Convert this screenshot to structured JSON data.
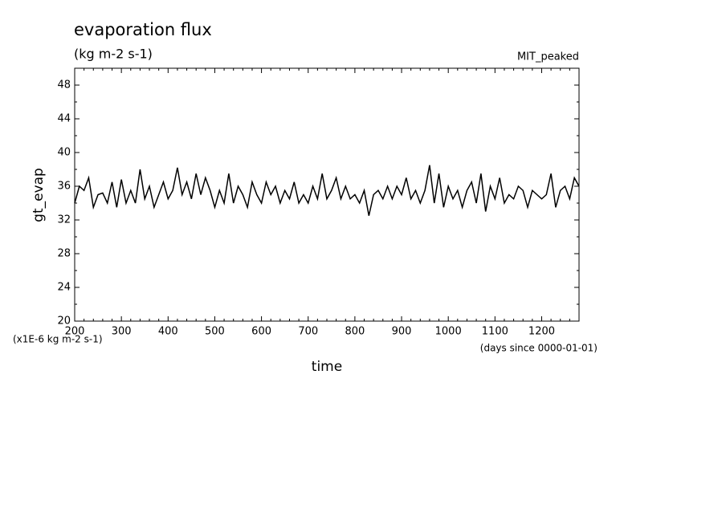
{
  "chart_data": {
    "type": "line",
    "title": "evaporation flux",
    "subtitle": "(kg m-2 s-1)",
    "annotation": "MIT_peaked",
    "ylabel": "gt_evap",
    "xlabel": "time",
    "y_unit_note": "(x1E-6 kg m-2 s-1)",
    "x_unit_note": "(days since 0000-01-01)",
    "xlim": [
      200,
      1280
    ],
    "ylim": [
      20,
      50
    ],
    "xticks": [
      200,
      300,
      400,
      500,
      600,
      700,
      800,
      900,
      1000,
      1100,
      1200
    ],
    "yticks": [
      20,
      24,
      28,
      32,
      36,
      40,
      44,
      48
    ],
    "x": [
      200,
      210,
      220,
      230,
      240,
      250,
      260,
      270,
      280,
      290,
      300,
      310,
      320,
      330,
      340,
      350,
      360,
      370,
      380,
      390,
      400,
      410,
      420,
      430,
      440,
      450,
      460,
      470,
      480,
      490,
      500,
      510,
      520,
      530,
      540,
      550,
      560,
      570,
      580,
      590,
      600,
      610,
      620,
      630,
      640,
      650,
      660,
      670,
      680,
      690,
      700,
      710,
      720,
      730,
      740,
      750,
      760,
      770,
      780,
      790,
      800,
      810,
      820,
      830,
      840,
      850,
      860,
      870,
      880,
      890,
      900,
      910,
      920,
      930,
      940,
      950,
      960,
      970,
      980,
      990,
      1000,
      1010,
      1020,
      1030,
      1040,
      1050,
      1060,
      1070,
      1080,
      1090,
      1100,
      1110,
      1120,
      1130,
      1140,
      1150,
      1160,
      1170,
      1180,
      1190,
      1200,
      1210,
      1220,
      1230,
      1240,
      1250,
      1260,
      1270,
      1280
    ],
    "series": [
      {
        "color": "#000000",
        "values": [
          34,
          36,
          35.5,
          37,
          33.5,
          35,
          35.2,
          34,
          36.5,
          33.5,
          36.8,
          34,
          35.5,
          34,
          38,
          34.5,
          36,
          33.5,
          35,
          36.5,
          34.5,
          35.5,
          38.2,
          35,
          36.5,
          34.5,
          37.5,
          35,
          37,
          35.5,
          33.5,
          35.5,
          34,
          37.5,
          34,
          36,
          35,
          33.5,
          36.5,
          35,
          34,
          36.5,
          35,
          36,
          34,
          35.5,
          34.5,
          36.5,
          34,
          35,
          34,
          36,
          34.5,
          37.5,
          34.5,
          35.5,
          37,
          34.5,
          36,
          34.5,
          35,
          34,
          35.5,
          32.5,
          35,
          35.5,
          34.5,
          36,
          34.5,
          36,
          35,
          37,
          34.5,
          35.5,
          34,
          35.5,
          38.5,
          34,
          37.5,
          33.5,
          36,
          34.5,
          35.5,
          33.5,
          35.5,
          36.5,
          34,
          37.5,
          33,
          36,
          34.5,
          37,
          34,
          35,
          34.5,
          36,
          35.5,
          33.5,
          35.5,
          35,
          34.5,
          35,
          37.5,
          33.5,
          35.5,
          36,
          34.5,
          37,
          36
        ]
      }
    ]
  }
}
